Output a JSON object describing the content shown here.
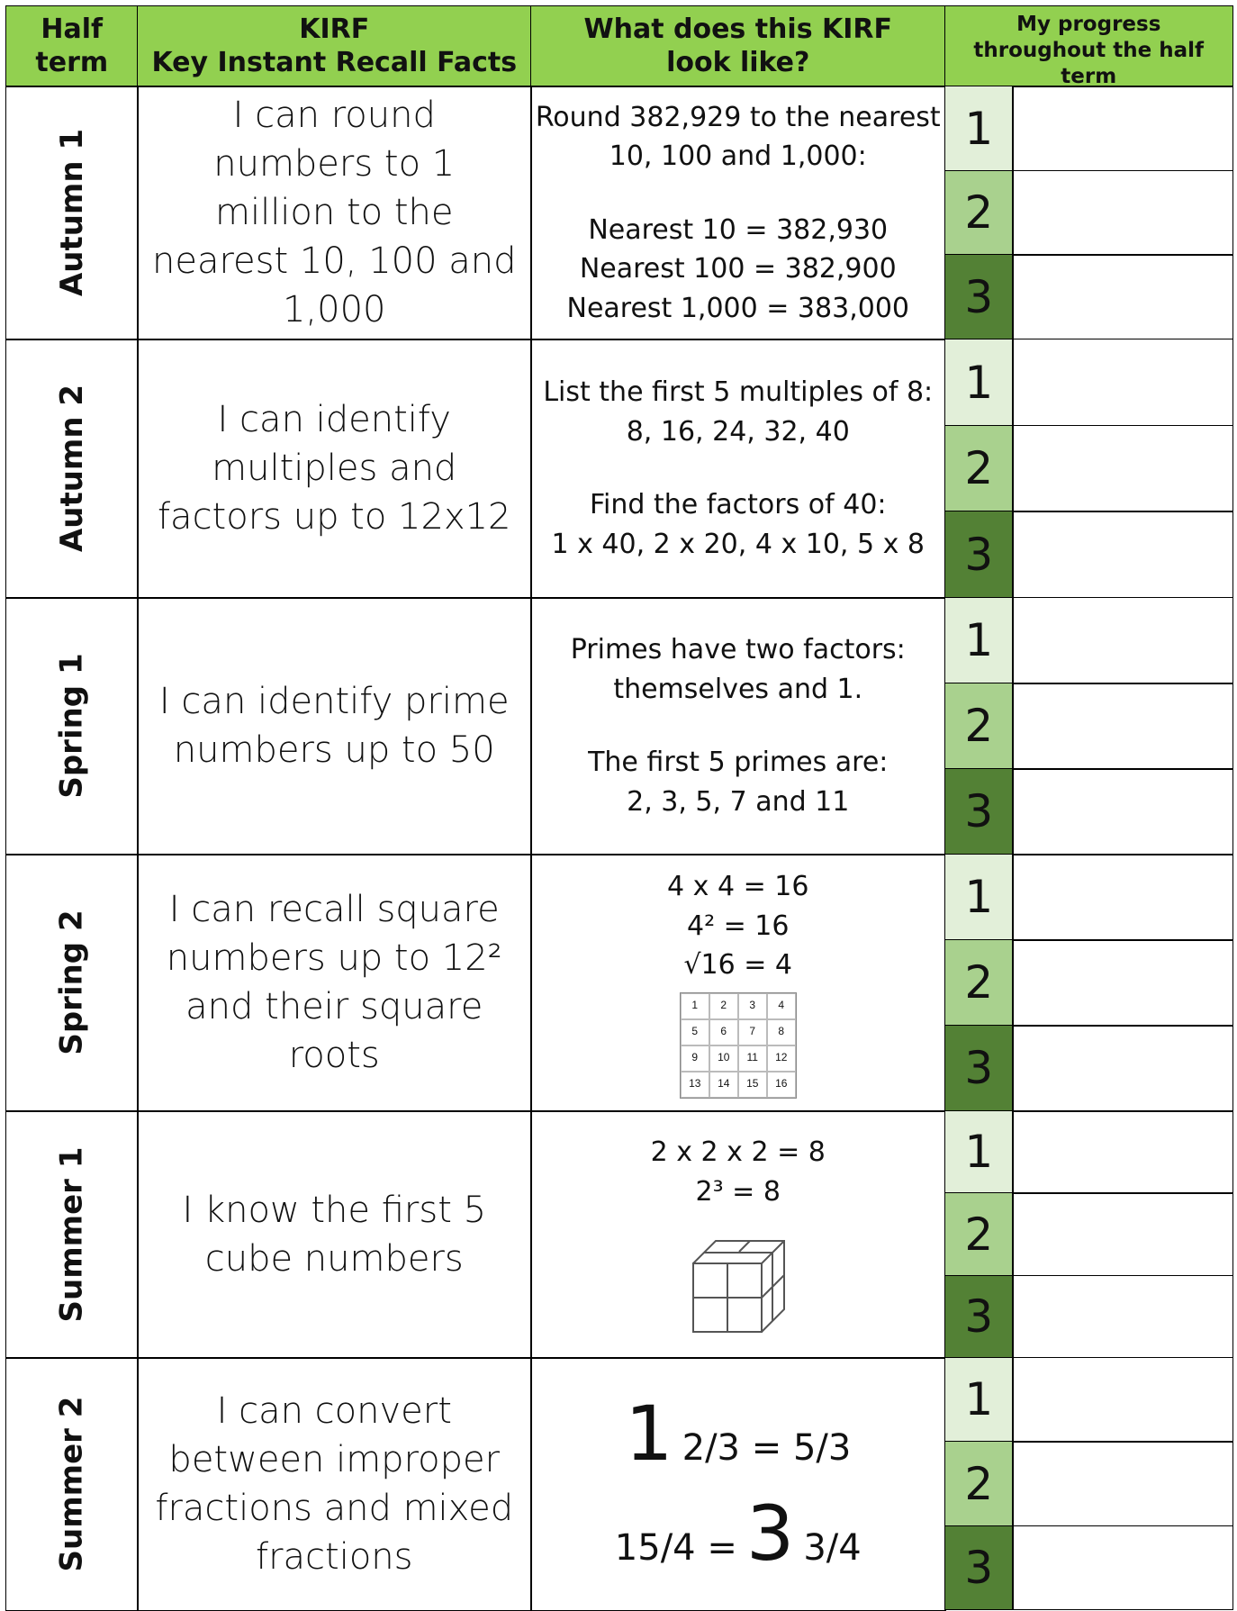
{
  "header": {
    "half_term": "Half term",
    "kirf": "KIRF",
    "kirf_full": "Key Instant Recall Facts",
    "example": "What does this KIRF look like?",
    "progress": "My progress throughout the half term"
  },
  "rows": [
    {
      "term": "Autumn 1",
      "kirf": "I can round numbers to 1 million to the nearest 10, 100 and 1,000",
      "example": [
        [
          "Round 382,929 to the nearest",
          "10, 100 and 1,000:"
        ],
        [
          "Nearest 10 = 382,930",
          "Nearest 100 = 382,900",
          "Nearest 1,000 = 383,000"
        ]
      ],
      "levels": [
        1,
        2,
        3
      ]
    },
    {
      "term": "Autumn 2",
      "kirf": "I can identify multiples and factors up to 12x12",
      "example": [
        [
          "List the first 5 multiples of 8:",
          "8, 16, 24, 32, 40"
        ],
        [
          "Find the factors of 40:",
          "1 x 40,  2 x 20, 4 x 10,  5 x 8"
        ]
      ],
      "levels": [
        1,
        2,
        3
      ]
    },
    {
      "term": "Spring 1",
      "kirf": "I can identify prime numbers up to 50",
      "example": [
        [
          "Primes have two factors:",
          "themselves and 1."
        ],
        [
          "The first 5 primes are:",
          "2, 3, 5, 7 and 11"
        ]
      ],
      "levels": [
        1,
        2,
        3
      ]
    },
    {
      "term": "Spring 2",
      "kirf": "I can recall square numbers up to 12² and their square roots",
      "example": [
        [
          "4 x 4 = 16",
          "4² = 16",
          "√16 = 4"
        ]
      ],
      "grid": [
        [
          1,
          2,
          3,
          4
        ],
        [
          5,
          6,
          7,
          8
        ],
        [
          9,
          10,
          11,
          12
        ],
        [
          13,
          14,
          15,
          16
        ]
      ],
      "levels": [
        1,
        2,
        3
      ]
    },
    {
      "term": "Summer 1",
      "kirf": "I know the first 5 cube numbers",
      "example": [
        [
          "2 x 2 x 2 = 8",
          "2³ = 8"
        ]
      ],
      "levels": [
        1,
        2,
        3
      ]
    },
    {
      "term": "Summer 2",
      "kirf": "I can convert between improper fractions and mixed fractions",
      "mixed": [
        [
          "1",
          "2/3 = 5/3"
        ],
        [
          "15/4 =",
          "3",
          "3/4"
        ]
      ],
      "levels": [
        1,
        2,
        3
      ]
    }
  ]
}
